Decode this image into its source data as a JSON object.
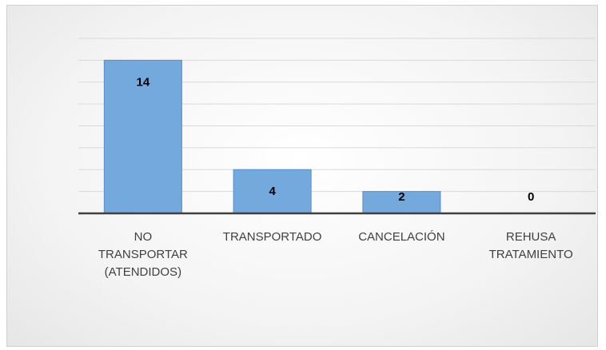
{
  "chart_data": {
    "type": "bar",
    "categories": [
      "NO TRANSPORTAR (ATENDIDOS)",
      "TRANSPORTADO",
      "CANCELACIÓN",
      "REHUSA TRATAMIENTO"
    ],
    "values": [
      14,
      4,
      2,
      0
    ],
    "color": "#73a9dd",
    "ylim": [
      0,
      16
    ],
    "yticks": [
      0,
      2,
      4,
      6,
      8,
      10,
      12,
      14,
      16
    ],
    "grid": true
  }
}
